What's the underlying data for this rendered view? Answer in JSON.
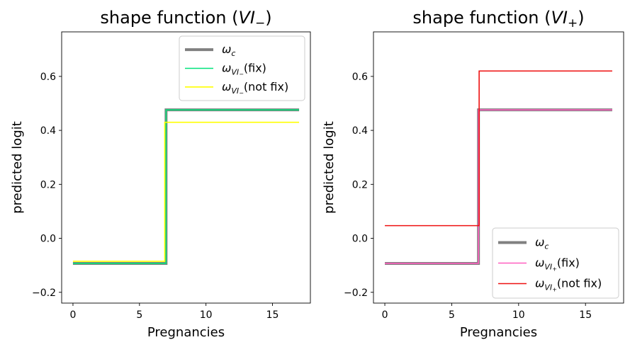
{
  "chart_data": [
    {
      "type": "line",
      "title_text": "shape function (",
      "title_var": "VI",
      "title_sub": "−",
      "title_close": ")",
      "xlabel": "Pregnancies",
      "ylabel": "predicted logit",
      "xlim": [
        -0.85,
        17.85
      ],
      "ylim": [
        -0.24,
        0.765
      ],
      "xticks": [
        0,
        5,
        10,
        15
      ],
      "yticks": [
        -0.2,
        0.0,
        0.2,
        0.4,
        0.6
      ],
      "ytick_labels": [
        "−0.2",
        "0.0",
        "0.2",
        "0.4",
        "0.6"
      ],
      "legend_position": "top-right",
      "series": [
        {
          "name": "ωc",
          "legend": {
            "sym": "ω",
            "sub": "c",
            "suffix": ""
          },
          "color": "#808080",
          "width": 4,
          "x": [
            0,
            7,
            7,
            17
          ],
          "y": [
            -0.093,
            -0.093,
            0.476,
            0.476
          ]
        },
        {
          "name": "ωVI−(fix)",
          "legend": {
            "sym": "ω",
            "sub": "VI",
            "subsub": "−",
            "suffix": "(fix)"
          },
          "color": "#00e37a",
          "width": 1.6,
          "x": [
            0,
            7,
            7,
            17
          ],
          "y": [
            -0.093,
            -0.093,
            0.476,
            0.476
          ]
        },
        {
          "name": "ωVI−(not fix)",
          "legend": {
            "sym": "ω",
            "sub": "VI",
            "subsub": "−",
            "suffix": "(not fix)"
          },
          "color": "#ffff00",
          "width": 1.6,
          "x": [
            0,
            6.9,
            6.9,
            17
          ],
          "y": [
            -0.085,
            -0.085,
            0.43,
            0.43
          ]
        }
      ]
    },
    {
      "type": "line",
      "title_text": "shape function (",
      "title_var": "VI",
      "title_sub": "+",
      "title_close": ")",
      "xlabel": "Pregnancies",
      "ylabel": "predicted logit",
      "xlim": [
        -0.85,
        17.85
      ],
      "ylim": [
        -0.24,
        0.765
      ],
      "xticks": [
        0,
        5,
        10,
        15
      ],
      "yticks": [
        -0.2,
        0.0,
        0.2,
        0.4,
        0.6
      ],
      "ytick_labels": [
        "−0.2",
        "0.0",
        "0.2",
        "0.4",
        "0.6"
      ],
      "legend_position": "bottom-right",
      "series": [
        {
          "name": "ωc",
          "legend": {
            "sym": "ω",
            "sub": "c",
            "suffix": ""
          },
          "color": "#808080",
          "width": 4,
          "x": [
            0,
            7,
            7,
            17
          ],
          "y": [
            -0.093,
            -0.093,
            0.476,
            0.476
          ]
        },
        {
          "name": "ωVI+(fix)",
          "legend": {
            "sym": "ω",
            "sub": "VI",
            "subsub": "+",
            "suffix": "(fix)"
          },
          "color": "#ff5fc0",
          "width": 1.6,
          "x": [
            0,
            7,
            7,
            17
          ],
          "y": [
            -0.093,
            -0.093,
            0.476,
            0.476
          ]
        },
        {
          "name": "ωVI+(not fix)",
          "legend": {
            "sym": "ω",
            "sub": "VI",
            "subsub": "+",
            "suffix": "(not fix)"
          },
          "color": "#ee1111",
          "width": 1.6,
          "x": [
            0,
            7.05,
            7.05,
            17
          ],
          "y": [
            0.047,
            0.047,
            0.62,
            0.62
          ]
        }
      ]
    }
  ]
}
